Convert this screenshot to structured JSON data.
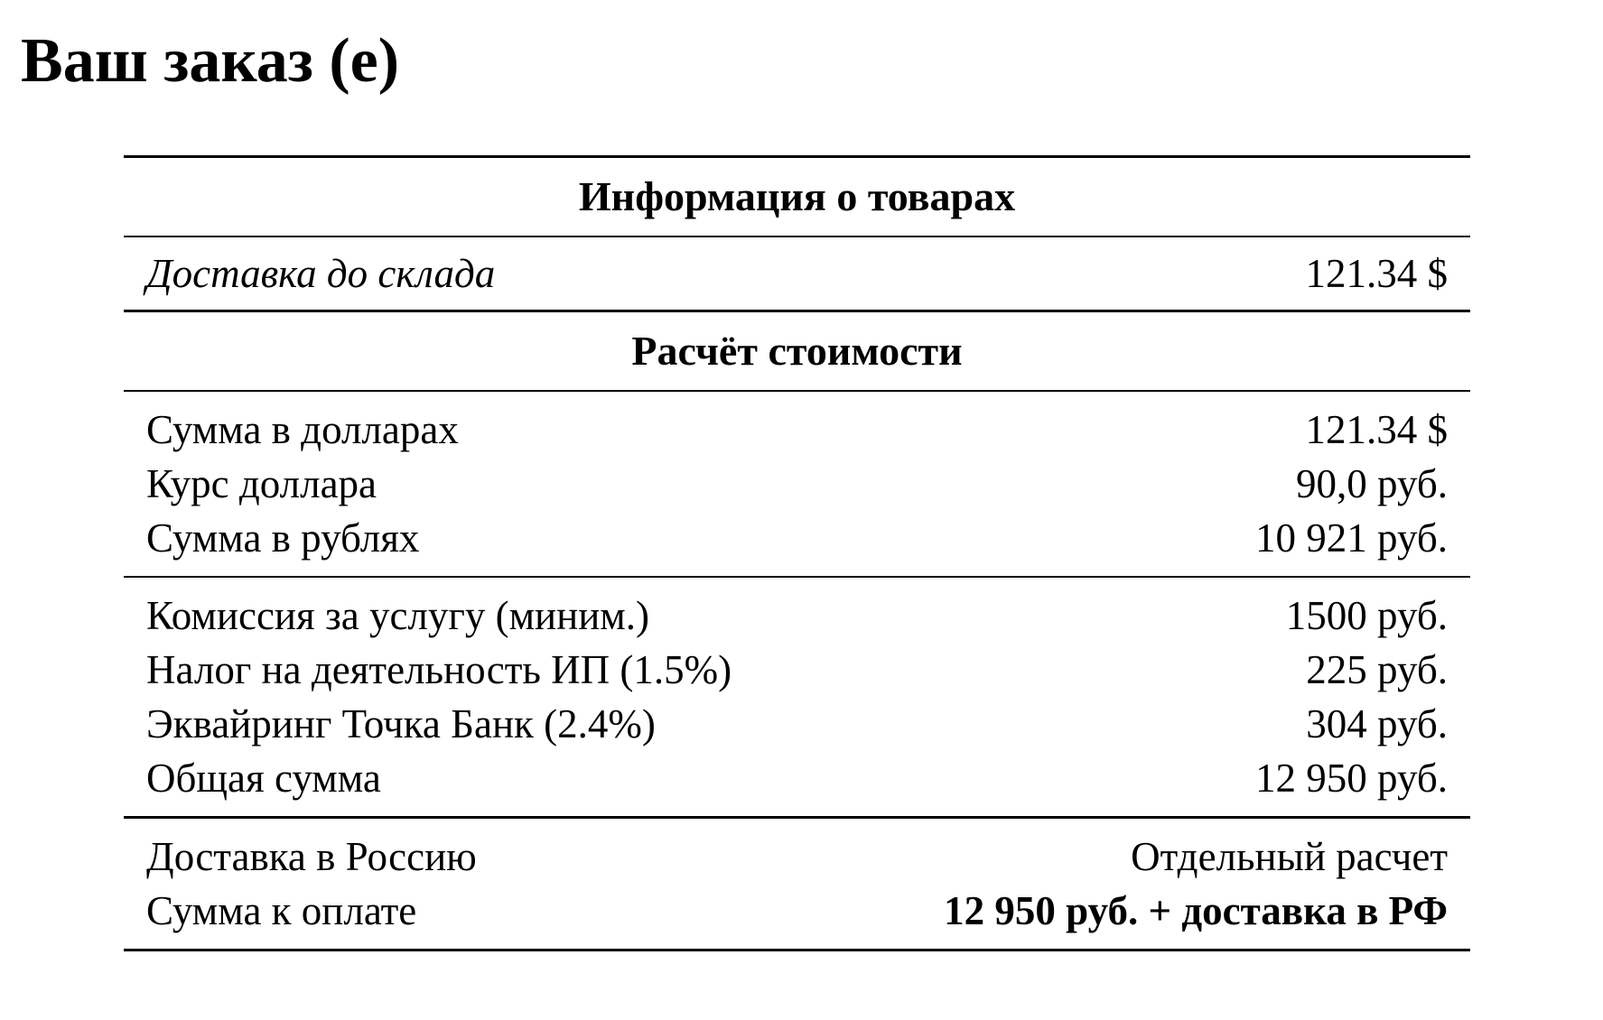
{
  "title": "Ваш заказ (е)",
  "table": {
    "sections": [
      {
        "heading": "Информация о товарах",
        "groups": [
          [
            [
              "Доставка до склада",
              "121.34 $"
            ]
          ]
        ]
      },
      {
        "heading": "Расчёт стоимости",
        "groups": [
          [
            [
              "Сумма в долларах",
              "121.34 $"
            ],
            [
              "Курс доллара",
              "90,0 руб."
            ],
            [
              "Сумма в рублях",
              "10 921 руб."
            ]
          ],
          [
            [
              "Комиссия за услугу (миним.)",
              "1500 руб."
            ],
            [
              "Налог на деятельность ИП (1.5%)",
              "225 руб."
            ],
            [
              "Эквайринг Точка Банк (2.4%)",
              "304 руб."
            ],
            [
              "Общая сумма",
              "12 950 руб."
            ]
          ]
        ]
      },
      {
        "groups": [
          [
            [
              "Доставка в Россию",
              "Отдельный расчет"
            ],
            [
              "Сумма к оплате",
              "12 950 руб. + доставка в РФ"
            ]
          ]
        ]
      }
    ]
  }
}
